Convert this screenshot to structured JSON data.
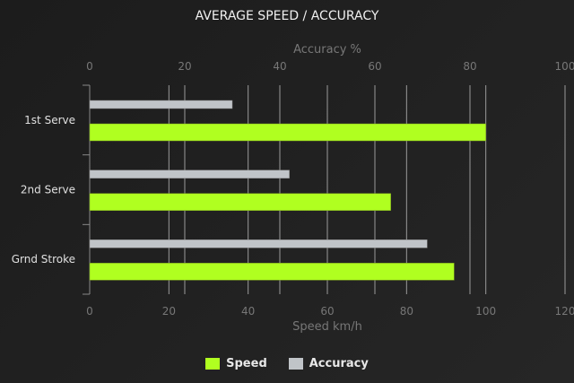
{
  "chart_data": {
    "type": "bar",
    "orientation": "horizontal",
    "title": "AVERAGE SPEED / ACCURACY",
    "categories": [
      "1st Serve",
      "2nd Serve",
      "Grnd Stroke"
    ],
    "series": [
      {
        "name": "Speed",
        "axis": "bottom",
        "color": "#b0ff20",
        "values": [
          100,
          76,
          92
        ]
      },
      {
        "name": "Accuracy",
        "axis": "top",
        "color": "#c0c4c8",
        "values": [
          30,
          42,
          71
        ]
      }
    ],
    "bottom_axis": {
      "label": "Speed km/h",
      "range": [
        0,
        120
      ],
      "ticks": [
        0,
        20,
        40,
        60,
        80,
        100,
        120
      ]
    },
    "top_axis": {
      "label": "Accuracy %",
      "range": [
        0,
        100
      ],
      "ticks": [
        0,
        20,
        40,
        60,
        80,
        100
      ]
    },
    "grid": "vertical",
    "legend_position": "bottom"
  }
}
